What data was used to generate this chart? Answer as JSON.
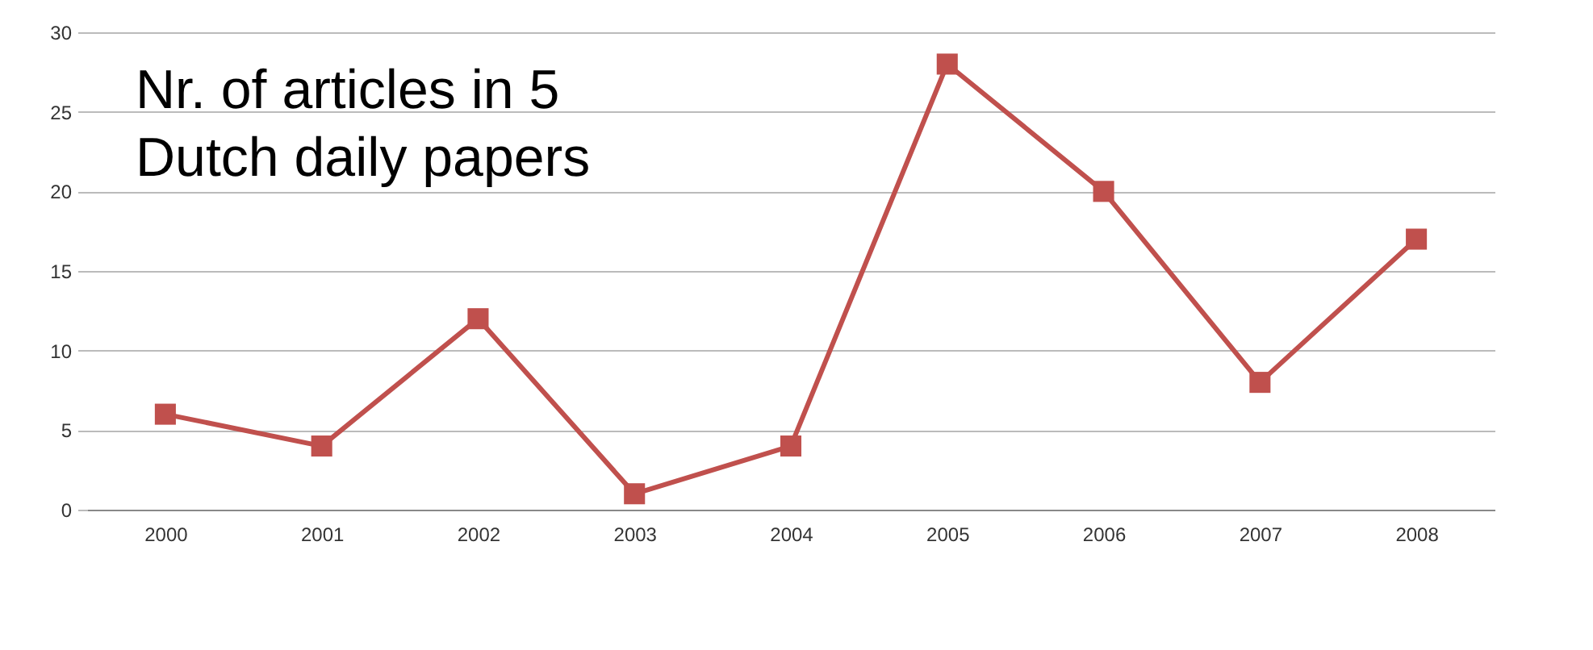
{
  "chart_data": {
    "type": "line",
    "categories": [
      "2000",
      "2001",
      "2002",
      "2003",
      "2004",
      "2005",
      "2006",
      "2007",
      "2008"
    ],
    "series": [
      {
        "color": "#c0504d",
        "values": [
          6,
          4,
          12,
          1,
          4,
          28,
          20,
          8,
          17
        ]
      }
    ],
    "ylim": [
      0,
      30
    ],
    "yticks": [
      0,
      5,
      10,
      15,
      20,
      25,
      30
    ],
    "grid": "y",
    "marker": "square",
    "legend": false,
    "annotations": [
      "Nr. of articles in 5\nDutch daily papers"
    ]
  }
}
